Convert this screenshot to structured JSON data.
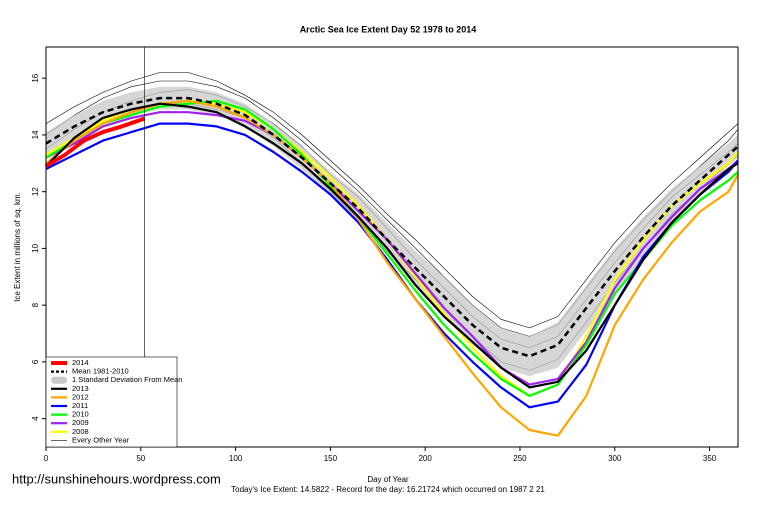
{
  "chart_data": {
    "type": "line",
    "title": "Arctic Sea Ice Extent Day 52 1978 to 2014",
    "x_label": "Day of Year",
    "y_label": "Ice Extent in millions of sq. km.",
    "footer": "Today's Ice Extent: 14.5822  - Record for the day: 16.21724 which occurred on 1987 2 21",
    "watermark": "http://sunshinehours.wordpress.com",
    "marker_day": 52,
    "xlim": [
      0,
      365
    ],
    "ylim": [
      3,
      17.1
    ],
    "xticks": [
      0,
      50,
      100,
      150,
      200,
      250,
      300,
      350
    ],
    "yticks": [
      4,
      6,
      8,
      10,
      12,
      14,
      16
    ],
    "legend": "bottom-left",
    "x": [
      0,
      15,
      30,
      45,
      60,
      75,
      90,
      105,
      120,
      135,
      150,
      165,
      180,
      195,
      210,
      225,
      240,
      255,
      270,
      285,
      300,
      315,
      330,
      345,
      360,
      365
    ],
    "band": {
      "name": "1 Standard Deviation From Mean",
      "color": "#c8c8c8",
      "upper": [
        14.1,
        14.7,
        15.2,
        15.5,
        15.7,
        15.7,
        15.5,
        15.1,
        14.4,
        13.6,
        12.7,
        11.9,
        10.9,
        9.9,
        9.0,
        8.0,
        7.2,
        6.9,
        7.4,
        8.7,
        10.0,
        11.1,
        12.1,
        12.9,
        13.7,
        14.0
      ],
      "lower": [
        13.3,
        13.9,
        14.4,
        14.7,
        14.9,
        14.9,
        14.7,
        14.3,
        13.6,
        12.8,
        11.9,
        10.9,
        9.7,
        8.7,
        7.6,
        6.6,
        5.8,
        5.5,
        5.8,
        7.1,
        8.4,
        9.7,
        10.9,
        11.9,
        12.9,
        13.2
      ]
    },
    "other_years": {
      "name": "Every Other Year",
      "color": "#000000",
      "series": [
        [
          14.0,
          14.7,
          15.3,
          15.7,
          15.9,
          15.9,
          15.7,
          15.3,
          14.6,
          13.8,
          12.9,
          12.0,
          11.0,
          10.0,
          9.0,
          8.0,
          7.2,
          6.9,
          7.3,
          8.6,
          9.9,
          11.0,
          12.0,
          12.9,
          13.8,
          14.2
        ],
        [
          13.5,
          14.2,
          14.8,
          15.2,
          15.5,
          15.6,
          15.4,
          15.0,
          14.4,
          13.6,
          12.6,
          11.8,
          10.7,
          9.6,
          8.6,
          7.6,
          6.8,
          6.5,
          6.9,
          8.2,
          9.5,
          10.7,
          11.8,
          12.6,
          13.4,
          13.7
        ],
        [
          14.4,
          15.0,
          15.5,
          15.9,
          16.2,
          16.2,
          15.9,
          15.4,
          14.8,
          14.0,
          13.1,
          12.2,
          11.2,
          10.3,
          9.3,
          8.3,
          7.5,
          7.2,
          7.6,
          8.9,
          10.2,
          11.3,
          12.3,
          13.2,
          14.1,
          14.4
        ],
        [
          13.3,
          13.9,
          14.5,
          14.9,
          15.1,
          15.1,
          14.9,
          14.6,
          13.9,
          13.0,
          12.0,
          11.0,
          9.9,
          8.9,
          7.9,
          6.9,
          6.0,
          5.7,
          6.1,
          7.4,
          8.8,
          10.0,
          11.2,
          12.1,
          13.0,
          13.3
        ]
      ]
    },
    "series": [
      {
        "name": "2014",
        "color": "#ff0000",
        "x": [
          0,
          10,
          20,
          30,
          40,
          52
        ],
        "values": [
          12.9,
          13.3,
          13.8,
          14.1,
          14.3,
          14.58
        ]
      },
      {
        "name": "Mean 1981-2010",
        "color": "#000000",
        "dashed": true,
        "values": [
          13.7,
          14.3,
          14.8,
          15.1,
          15.3,
          15.3,
          15.1,
          14.7,
          14.0,
          13.2,
          12.3,
          11.4,
          10.3,
          9.3,
          8.3,
          7.3,
          6.5,
          6.2,
          6.6,
          7.9,
          9.2,
          10.4,
          11.5,
          12.4,
          13.3,
          13.6
        ]
      },
      {
        "name": "2013",
        "color": "#000000",
        "values": [
          12.9,
          13.9,
          14.6,
          14.9,
          15.1,
          15.0,
          14.8,
          14.3,
          13.7,
          13.0,
          12.1,
          11.1,
          10.0,
          8.7,
          7.6,
          6.7,
          5.8,
          5.1,
          5.3,
          6.4,
          8.0,
          9.6,
          10.9,
          11.9,
          12.8,
          13.0
        ]
      },
      {
        "name": "2012",
        "color": "#ffa500",
        "values": [
          13.0,
          13.8,
          14.4,
          14.8,
          15.1,
          15.2,
          15.0,
          14.6,
          14.0,
          13.2,
          12.3,
          11.0,
          9.5,
          8.2,
          6.9,
          5.6,
          4.4,
          3.6,
          3.4,
          4.8,
          7.3,
          8.9,
          10.2,
          11.3,
          12.0,
          12.6
        ]
      },
      {
        "name": "2011",
        "color": "#0000ff",
        "values": [
          12.8,
          13.3,
          13.8,
          14.1,
          14.4,
          14.4,
          14.3,
          14.0,
          13.4,
          12.7,
          11.9,
          10.9,
          9.6,
          8.2,
          7.0,
          6.0,
          5.1,
          4.4,
          4.6,
          5.9,
          8.0,
          9.7,
          10.9,
          11.9,
          12.7,
          13.1
        ]
      },
      {
        "name": "2010",
        "color": "#00ff00",
        "values": [
          13.2,
          13.8,
          14.4,
          14.7,
          15.0,
          15.1,
          15.2,
          14.9,
          14.2,
          13.3,
          12.2,
          11.1,
          9.8,
          8.5,
          7.3,
          6.3,
          5.4,
          4.8,
          5.2,
          6.6,
          8.4,
          9.6,
          10.8,
          11.7,
          12.4,
          12.7
        ]
      },
      {
        "name": "2009",
        "color": "#a020f0",
        "values": [
          13.2,
          13.7,
          14.3,
          14.6,
          14.8,
          14.8,
          14.7,
          14.5,
          14.0,
          13.2,
          12.3,
          11.3,
          10.3,
          9.1,
          7.9,
          6.9,
          5.8,
          5.2,
          5.4,
          6.7,
          8.6,
          10.0,
          11.1,
          12.1,
          12.8,
          13.1
        ]
      },
      {
        "name": "2008",
        "color": "#ffff00",
        "values": [
          13.3,
          13.9,
          14.5,
          14.9,
          15.1,
          15.2,
          15.1,
          14.8,
          14.2,
          13.4,
          12.5,
          11.5,
          10.3,
          9.0,
          7.7,
          6.5,
          5.5,
          4.8,
          5.2,
          6.9,
          8.9,
          10.3,
          11.5,
          12.3,
          13.0,
          13.4
        ]
      }
    ]
  }
}
